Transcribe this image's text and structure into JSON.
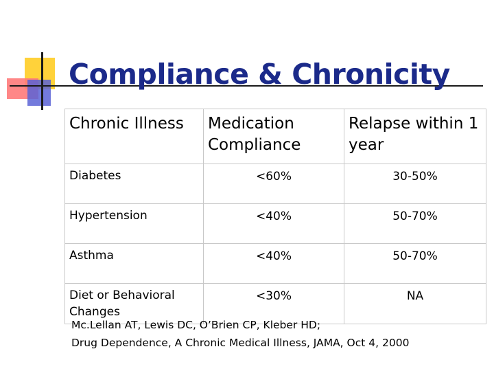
{
  "slide": {
    "title": "Compliance & Chronicity"
  },
  "table": {
    "headers": [
      "Chronic Illness",
      "Medication Compliance",
      "Relapse within 1 year"
    ],
    "rows": [
      [
        "Diabetes",
        "<60%",
        "30-50%"
      ],
      [
        "Hypertension",
        "<40%",
        "50-70%"
      ],
      [
        "Asthma",
        "<40%",
        "50-70%"
      ],
      [
        "Diet or Behavioral Changes",
        "<30%",
        "NA"
      ]
    ]
  },
  "citation": {
    "line1": "Mc.Lellan AT, Lewis DC, O’Brien CP, Kleber HD;",
    "line2": "Drug Dependence, A Chronic Medical Illness, JAMA, Oct 4, 2000"
  },
  "colors": {
    "title": "#1b2a8a",
    "accent_yellow": "#ffd23a",
    "accent_red": "#ff7a7a",
    "accent_blue": "#5a63d6"
  }
}
